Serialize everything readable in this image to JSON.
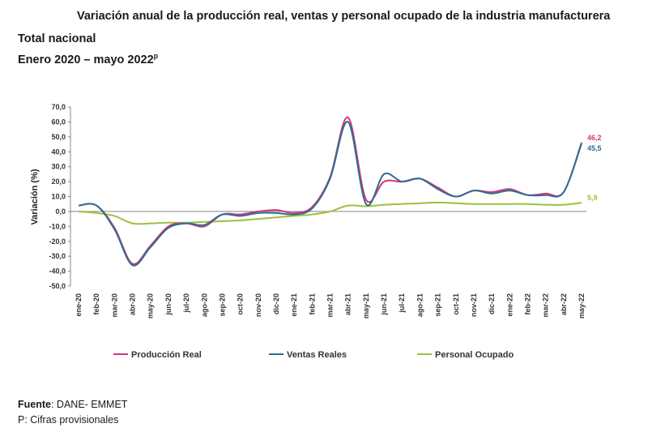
{
  "header": {
    "title": "Variación anual de la producción real, ventas y personal ocupado de la industria manufacturera",
    "subtitle1": "Total nacional",
    "subtitle2": "Enero 2020 – mayo 2022",
    "subtitle2_sup": "p"
  },
  "footer": {
    "source_label": "Fuente",
    "source_text": ": DANE- EMMET",
    "note": "P: Cifras provisionales"
  },
  "chart_data": {
    "type": "line",
    "title": "Variación anual de la producción real, ventas y personal ocupado de la industria manufacturera",
    "xlabel": "",
    "ylabel": "Variación (%)",
    "ylim": [
      -50,
      70
    ],
    "yticks": [
      "70,0",
      "60,0",
      "50,0",
      "40,0",
      "30,0",
      "20,0",
      "10,0",
      "0,0",
      "-10,0",
      "-20,0",
      "-30,0",
      "-40,0",
      "-50,0"
    ],
    "ytick_values": [
      70,
      60,
      50,
      40,
      30,
      20,
      10,
      0,
      -10,
      -20,
      -30,
      -40,
      -50
    ],
    "grid": false,
    "legend_position": "bottom",
    "categories": [
      "ene-20",
      "feb-20",
      "mar-20",
      "abr-20",
      "may-20",
      "jun-20",
      "jul-20",
      "ago-20",
      "sep-20",
      "oct-20",
      "nov-20",
      "dic-20",
      "ene-21",
      "feb-21",
      "mar-21",
      "abr-21",
      "may-21",
      "jun-21",
      "jul-21",
      "ago-21",
      "sep-21",
      "oct-21",
      "nov-21",
      "dic-21",
      "ene-22",
      "feb-22",
      "mar-22",
      "abr-22",
      "may-22"
    ],
    "series": [
      {
        "name": "Producción Real",
        "color": "#d4367e",
        "values": [
          4,
          4,
          -11,
          -35,
          -23,
          -10,
          -8,
          -10,
          -2,
          -2,
          0,
          1,
          -1,
          3,
          23,
          63,
          8,
          20,
          20,
          22,
          16,
          10,
          14,
          13,
          15,
          11,
          12,
          13,
          46.2
        ],
        "end_label": "46,2"
      },
      {
        "name": "Ventas Reales",
        "color": "#2b6f8f",
        "values": [
          4,
          4,
          -12,
          -36,
          -24,
          -11,
          -8,
          -9,
          -2,
          -3,
          -1,
          -1,
          -2,
          2,
          22,
          60,
          5,
          25,
          20,
          22,
          15,
          10,
          14,
          12,
          14,
          11,
          11,
          13,
          45.5
        ],
        "end_label": "45,5"
      },
      {
        "name": "Personal Ocupado",
        "color": "#9ac13d",
        "values": [
          0,
          -1,
          -3,
          -8,
          -8,
          -7.5,
          -7.5,
          -7,
          -6.5,
          -6,
          -5,
          -4,
          -3,
          -2,
          0,
          4,
          3.5,
          4.5,
          5,
          5.5,
          6,
          5.5,
          5,
          5,
          5,
          5,
          4.5,
          4.5,
          5.9
        ],
        "end_label": "5,9"
      }
    ]
  }
}
